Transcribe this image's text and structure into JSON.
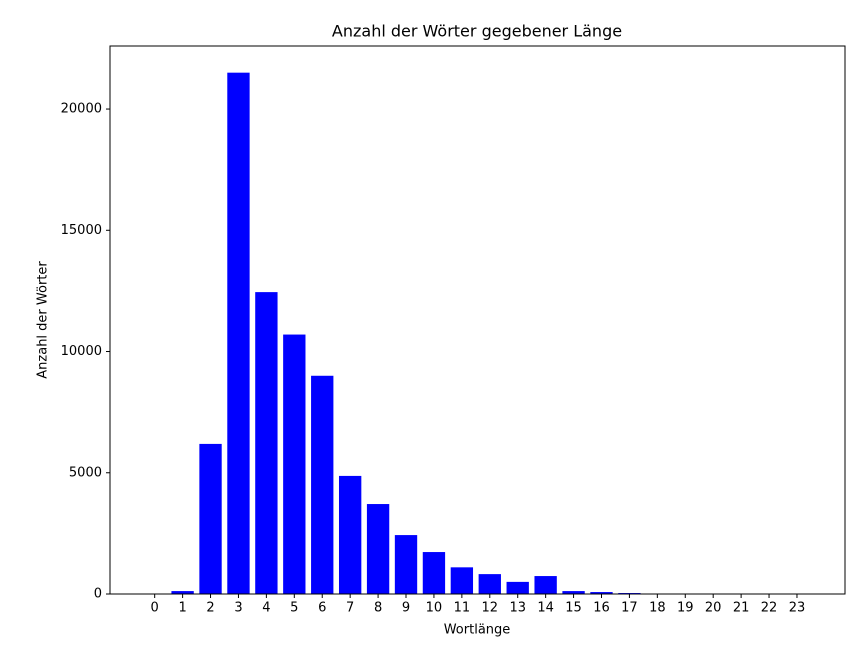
{
  "chart_data": {
    "type": "bar",
    "title": "Anzahl der Wörter gegebener Länge",
    "x_label": "Wortlänge",
    "y_label": "Anzahl der Wörter",
    "x": [
      0,
      1,
      2,
      3,
      4,
      5,
      6,
      7,
      8,
      9,
      10,
      11,
      12,
      13,
      14,
      15,
      16,
      17,
      18,
      19,
      20,
      21,
      22,
      23
    ],
    "values": [
      0,
      120,
      6190,
      21500,
      12450,
      10700,
      9000,
      4870,
      3710,
      2430,
      1730,
      1100,
      820,
      500,
      740,
      120,
      80,
      40,
      0,
      0,
      0,
      0,
      0,
      0
    ],
    "color": "#0000ff",
    "bar_width": 0.8,
    "xlim": [
      -1.6,
      24.72
    ],
    "xticks": [
      0,
      1,
      2,
      3,
      4,
      5,
      6,
      7,
      8,
      9,
      10,
      11,
      12,
      13,
      14,
      15,
      16,
      17,
      18,
      19,
      20,
      21,
      22,
      23
    ],
    "ylim": [
      0,
      22600
    ],
    "yticks": [
      0,
      5000,
      10000,
      15000,
      20000
    ],
    "grid": false
  }
}
